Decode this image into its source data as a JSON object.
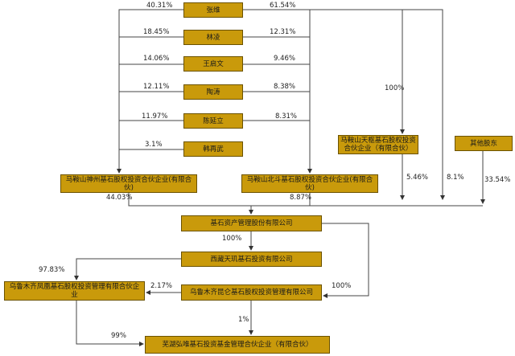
{
  "nodes": [
    "张维",
    "林凌",
    "王启文",
    "陶涛",
    "陈延立",
    "韩再武",
    "马鞍山神州基石股权投资合伙企业(有限合伙)",
    "马鞍山北斗基石股权投资合伙企业(有限合伙)",
    "马鞍山天枢基石股权投资合伙企业（有限合伙）",
    "其他股东",
    "基石资产管理股份有限公司",
    "西藏天玑基石投资有限公司",
    "乌鲁木齐凤凰基石股权投资管理有限合伙企业",
    "乌鲁木齐昆仑基石股权投资管理有限公司",
    "芜湖弘唯基石投资基金管理合伙企业（有限合伙）"
  ],
  "edge_labels": [
    "40.31%",
    "61.54%",
    "18.45%",
    "12.31%",
    "14.06%",
    "9.46%",
    "12.11%",
    "8.38%",
    "11.97%",
    "8.31%",
    "3.1%",
    "100%",
    "5.46%",
    "8.1%",
    "33.54%",
    "44.03%",
    "8.87%",
    "100%",
    "97.83%",
    "2.17%",
    "100%",
    "1%",
    "99%"
  ]
}
